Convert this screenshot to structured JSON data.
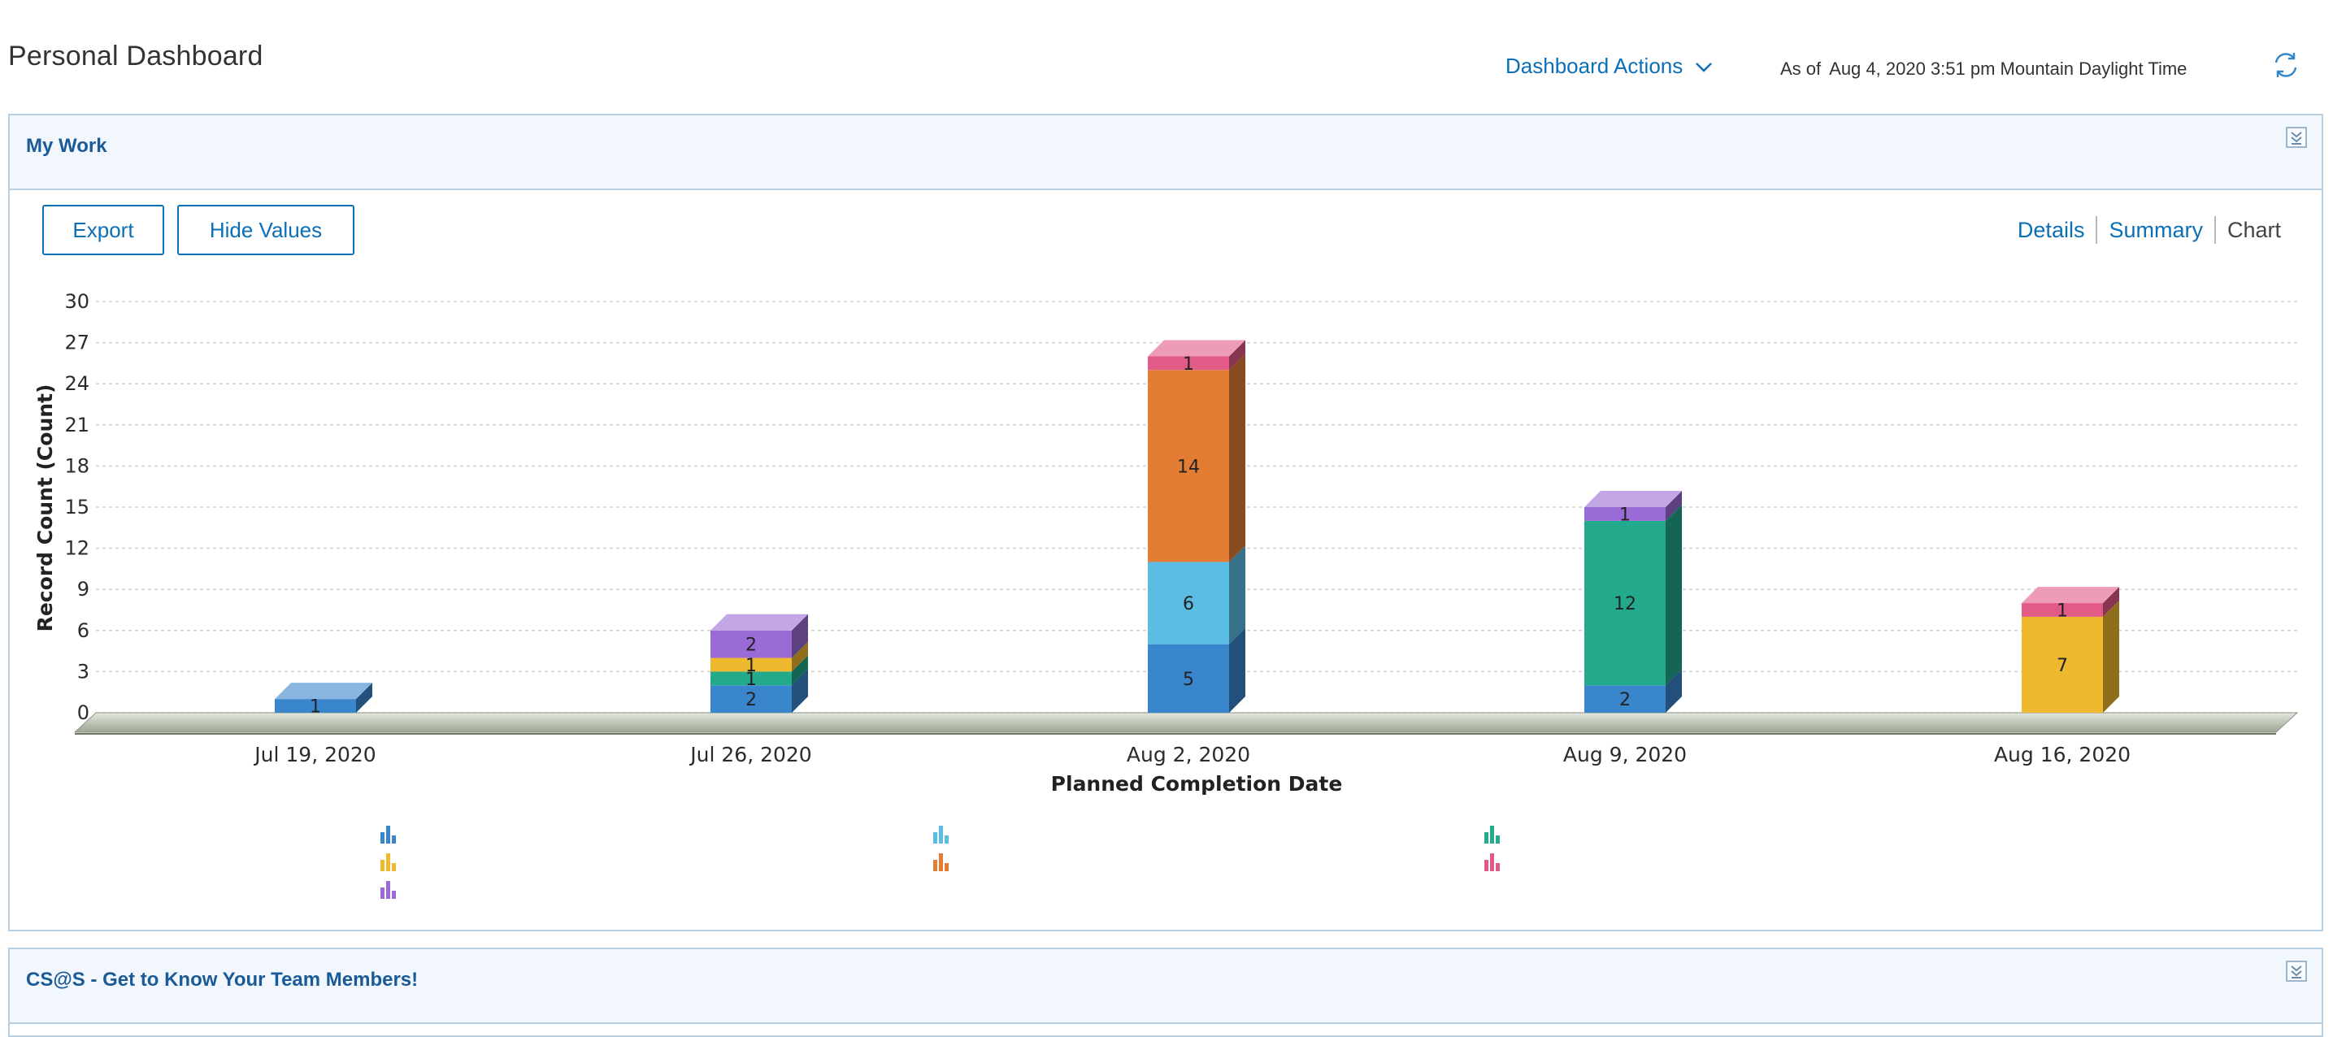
{
  "page": {
    "title": "Personal Dashboard",
    "dashboard_actions_label": "Dashboard Actions",
    "as_of_label": "As of",
    "as_of_time": "Aug 4, 2020 3:51 pm Mountain Daylight Time"
  },
  "panels": [
    {
      "title": "My Work",
      "buttons": {
        "export": "Export",
        "hide_values": "Hide Values"
      },
      "views": [
        "Details",
        "Summary",
        "Chart"
      ],
      "active_view": "Chart"
    },
    {
      "title": "CS@S - Get to Know Your Team Members!"
    }
  ],
  "icons": [
    "chevron-down-icon",
    "refresh-icon",
    "collapse-icon",
    "bar-chart-legend-icon"
  ],
  "chart_data": {
    "type": "bar",
    "stacked": true,
    "style": "3d",
    "xlabel": "Planned Completion Date",
    "ylabel": "Record Count (Count)",
    "ylim": [
      0,
      30
    ],
    "yticks": [
      0,
      3,
      6,
      9,
      12,
      15,
      18,
      21,
      24,
      27,
      30
    ],
    "grid": true,
    "categories": [
      "Jul 19, 2020",
      "Jul 26, 2020",
      "Aug 2, 2020",
      "Aug 9, 2020",
      "Aug 16, 2020"
    ],
    "series": [
      {
        "color": "#3a86cc",
        "values": [
          1,
          2,
          5,
          2,
          0
        ]
      },
      {
        "color": "#5bbde4",
        "values": [
          0,
          0,
          6,
          0,
          0
        ]
      },
      {
        "color": "#23a98c",
        "values": [
          0,
          1,
          0,
          12,
          0
        ]
      },
      {
        "color": "#efb92f",
        "values": [
          0,
          1,
          0,
          0,
          7
        ]
      },
      {
        "color": "#e27d33",
        "values": [
          0,
          0,
          14,
          0,
          0
        ]
      },
      {
        "color": "#e25a86",
        "values": [
          0,
          0,
          1,
          0,
          1
        ]
      },
      {
        "color": "#9a6ad6",
        "values": [
          0,
          2,
          0,
          1,
          0
        ]
      }
    ]
  }
}
